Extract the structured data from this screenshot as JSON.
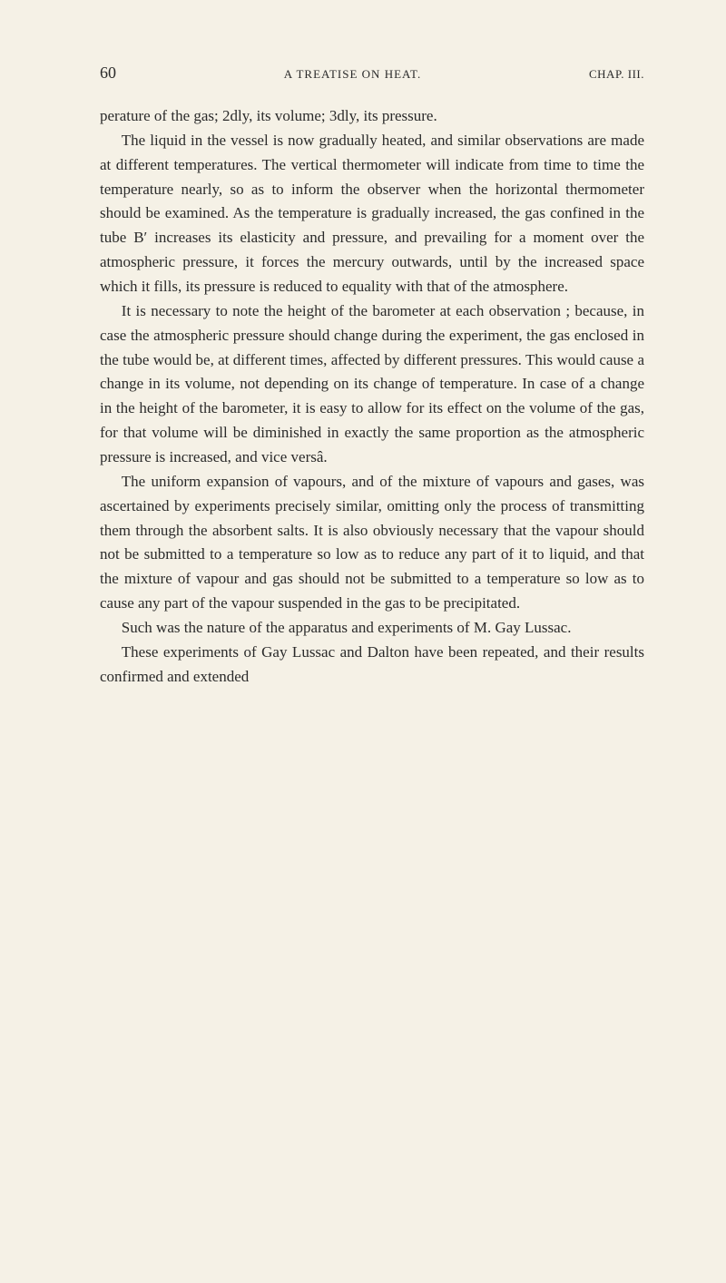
{
  "header": {
    "page_number": "60",
    "title": "A TREATISE ON HEAT.",
    "chapter": "CHAP. III."
  },
  "paragraphs": [
    {
      "text": "perature of the gas; 2dly, its volume; 3dly, its pressure.",
      "indent": false
    },
    {
      "text": "The liquid in the vessel is now gradually heated, and similar observations are made at different tem­peratures. The vertical thermometer will indicate from time to time the temperature nearly, so as to inform the observer when the horizontal thermometer should be examined. As the temperature is gradually in­creased, the gas confined in the tube B′ increases its elasticity and pressure, and prevailing for a moment over the atmospheric pressure, it forces the mercury outwards, until by the increased space which it fills, its pressure is reduced to equality with that of the atmosphere.",
      "indent": true
    },
    {
      "text": "It is necessary to note the height of the barometer at each observation ; because, in case the atmospheric pres­sure should change during the experiment, the gas enclosed in the tube would be, at different times, affected by different pressures. This would cause a change in its volume, not depending on its change of temperature. In case of a change in the height of the barometer, it is easy to allow for its effect on the volume of the gas, for that volume will be diminished in exactly the same pro­portion as the atmospheric pressure is increased, and vice versâ.",
      "indent": true
    },
    {
      "text": "The uniform expansion of vapours, and of the mix­ture of vapours and gases, was ascertained by experi­ments precisely similar, omitting only the process of transmitting them through the absorbent salts. It is also obviously necessary that the vapour should not be submitted to a temperature so low as to reduce any part of it to liquid, and that the mixture of vapour and gas should not be submitted to a temperature so low as to cause any part of the vapour suspended in the gas to be precipitated.",
      "indent": true
    },
    {
      "text": "Such was the nature of the apparatus and experi­ments of M. Gay Lussac.",
      "indent": true
    },
    {
      "text": "These experiments of Gay Lussac and Dalton have been repeated, and their results confirmed and extended",
      "indent": true
    }
  ]
}
